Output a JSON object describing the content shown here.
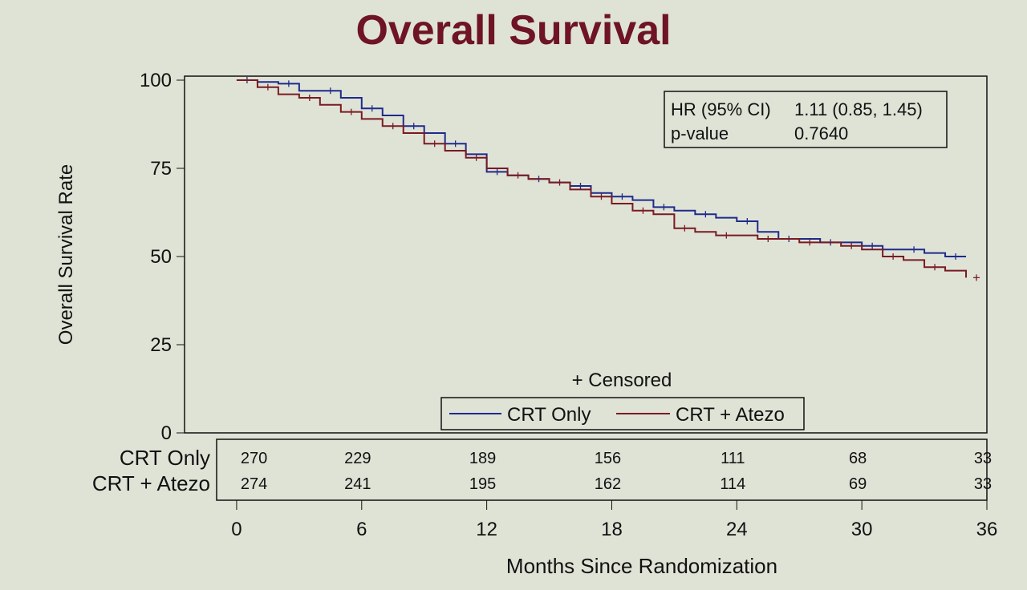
{
  "chart_data": {
    "type": "line",
    "title": "Overall Survival",
    "xlabel": "Months Since Randomization",
    "ylabel": "Overall Survival Rate",
    "xlim": [
      -2.5,
      36
    ],
    "ylim": [
      0,
      100
    ],
    "xticks": [
      0,
      6,
      12,
      18,
      24,
      30,
      36
    ],
    "yticks": [
      0,
      25,
      50,
      75,
      100
    ],
    "censored_label": "+ Censored",
    "legend_position": "bottom-center",
    "stats": {
      "hr_label": "HR (95% CI)",
      "hr_value": "1.11 (0.85, 1.45)",
      "p_label": "p-value",
      "p_value": "0.7640"
    },
    "series": [
      {
        "name": "CRT Only",
        "color": "#1f2a8c",
        "x": [
          0,
          1,
          2,
          3,
          4,
          5,
          6,
          7,
          8,
          9,
          10,
          11,
          12,
          13,
          14,
          15,
          16,
          17,
          18,
          19,
          20,
          21,
          22,
          23,
          24,
          25,
          26,
          27,
          28,
          29,
          30,
          31,
          32,
          33,
          34,
          35
        ],
        "y": [
          100,
          99.5,
          99,
          97,
          97,
          95,
          92,
          90,
          87,
          85,
          82,
          79,
          74,
          73,
          72,
          71,
          70,
          68,
          67,
          66,
          64,
          63,
          62,
          61,
          60,
          57,
          55,
          55,
          54,
          54,
          53,
          52,
          52,
          51,
          50,
          50
        ]
      },
      {
        "name": "CRT + Atezo",
        "color": "#7a1a22",
        "x": [
          0,
          1,
          2,
          3,
          4,
          5,
          6,
          7,
          8,
          9,
          10,
          11,
          12,
          13,
          14,
          15,
          16,
          17,
          18,
          19,
          20,
          21,
          22,
          23,
          24,
          25,
          26,
          27,
          28,
          29,
          30,
          31,
          32,
          33,
          34,
          35
        ],
        "y": [
          100,
          98,
          96,
          95,
          93,
          91,
          89,
          87,
          85,
          82,
          80,
          78,
          75,
          73,
          72,
          71,
          69,
          67,
          65,
          63,
          62,
          58,
          57,
          56,
          56,
          55,
          55,
          54,
          54,
          53,
          52,
          50,
          49,
          47,
          46,
          44
        ]
      }
    ],
    "at_risk": {
      "times": [
        0,
        6,
        12,
        18,
        24,
        30,
        36
      ],
      "rows": [
        {
          "label": "CRT Only",
          "values": [
            "270",
            "229",
            "189",
            "156",
            "111",
            "68",
            "33"
          ]
        },
        {
          "label": "CRT + Atezo",
          "values": [
            "274",
            "241",
            "195",
            "162",
            "114",
            "69",
            "33"
          ]
        }
      ]
    }
  }
}
